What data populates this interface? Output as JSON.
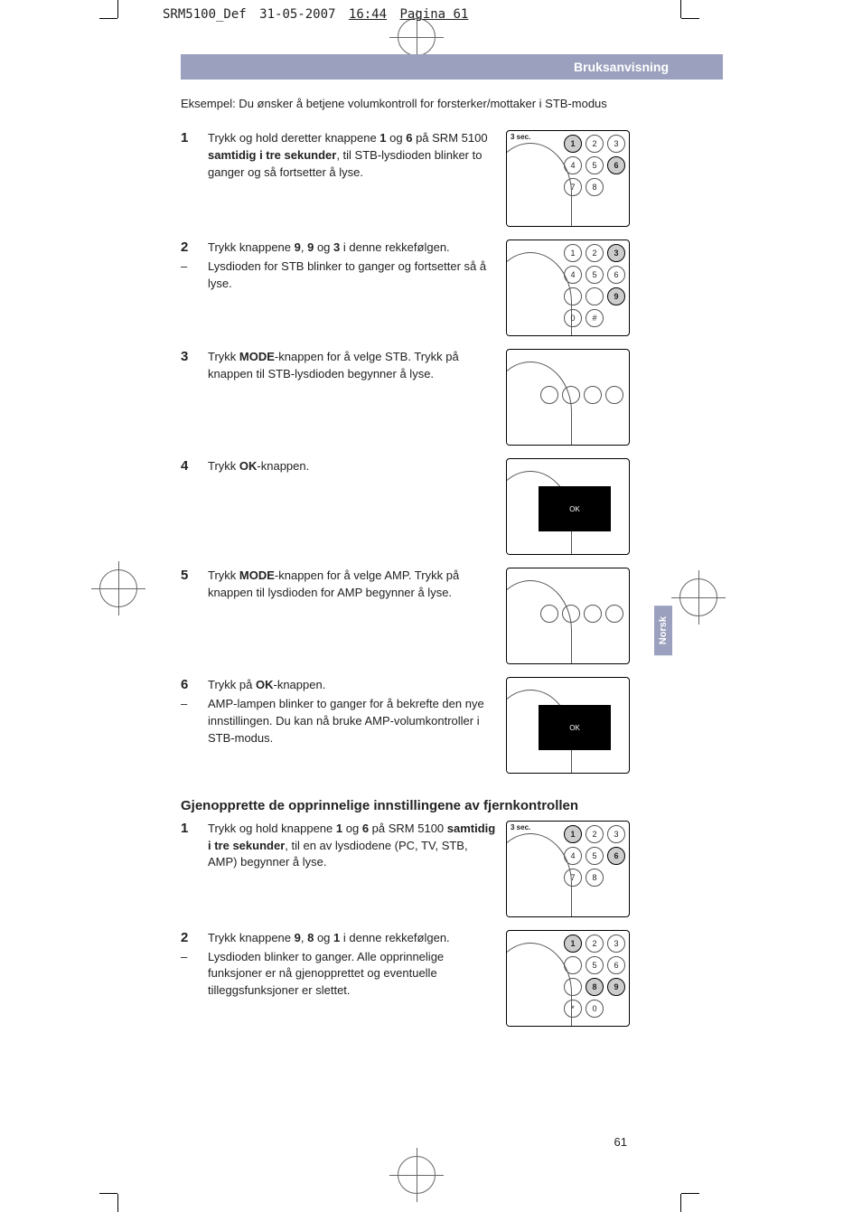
{
  "meta": {
    "filename": "SRM5100_Def",
    "date": "31-05-2007",
    "time": "16:44",
    "page_label": "Pagina 61"
  },
  "title_bar": "Bruksanvisning",
  "intro": "Eksempel: Du ønsker å betjene volumkontroll for forsterker/mottaker i STB-modus",
  "steps_a": [
    {
      "num": "1",
      "text_pre": "Trykk og hold deretter knappene ",
      "b1": "1",
      "mid1": " og ",
      "b2": "6",
      "mid2": " på SRM 5100 ",
      "b3": "samtidig i tre sekunder",
      "text_post": ", til STB-lysdioden blinker to ganger og så fortsetter å lyse.",
      "illus": {
        "timer": "3 sec.",
        "keys": [
          "1",
          "2",
          "3",
          "4",
          "5",
          "6",
          "7",
          "8"
        ],
        "hl": [
          "1",
          "6"
        ]
      }
    },
    {
      "num": "2",
      "text_pre": "Trykk knappene ",
      "b1": "9",
      "mid1": ", ",
      "b2": "9",
      "mid2": " og ",
      "b3": "3",
      "text_post": " i denne rekkefølgen.",
      "sub_dash": "–",
      "sub_text": "Lysdioden for STB blinker to ganger og fortsetter så å lyse.",
      "illus": {
        "keys": [
          "1",
          "2",
          "3",
          "4",
          "5",
          "6",
          "",
          "",
          "9",
          "0",
          "#"
        ],
        "hl": [
          "3",
          "9"
        ]
      }
    },
    {
      "num": "3",
      "text_pre": "Trykk ",
      "b1": "MODE",
      "text_post": "-knappen for å velge STB. Trykk på knappen til STB-lysdioden begynner å lyse.",
      "illus": {
        "mode": true
      }
    },
    {
      "num": "4",
      "text_pre": "Trykk ",
      "b1": "OK",
      "text_post": "-knappen.",
      "illus": {
        "ok": true
      }
    },
    {
      "num": "5",
      "text_pre": "Trykk ",
      "b1": "MODE",
      "text_post": "-knappen for å velge AMP. Trykk på knappen til lysdioden for AMP begynner å lyse.",
      "illus": {
        "mode": true
      }
    },
    {
      "num": "6",
      "text_pre": "Trykk på ",
      "b1": "OK",
      "text_post": "-knappen.",
      "sub_dash": "–",
      "sub_text": "AMP-lampen blinker to ganger for å bekrefte den nye innstillingen. Du kan nå bruke AMP-volumkontroller i STB-modus.",
      "illus": {
        "ok": true
      }
    }
  ],
  "heading_b": "Gjenopprette de opprinnelige innstillingene av fjernkontrollen",
  "steps_b": [
    {
      "num": "1",
      "text_pre": "Trykk og hold knappene ",
      "b1": "1",
      "mid1": " og ",
      "b2": "6",
      "mid2": " på SRM 5100 ",
      "b3": "samtidig i tre sekunder",
      "text_post": ", til en av lysdiodene (PC, TV, STB, AMP) begynner å lyse.",
      "illus": {
        "timer": "3 sec.",
        "keys": [
          "1",
          "2",
          "3",
          "4",
          "5",
          "6",
          "7",
          "8"
        ],
        "hl": [
          "1",
          "6"
        ]
      }
    },
    {
      "num": "2",
      "text_pre": "Trykk knappene ",
      "b1": "9",
      "mid1": ", ",
      "b2": "8",
      "mid2": " og ",
      "b3": "1",
      "text_post": " i denne rekkefølgen.",
      "sub_dash": "–",
      "sub_text": "Lysdioden blinker to ganger. Alle opprinnelige funksjoner er nå gjenopprettet og eventuelle tilleggsfunksjoner er slettet.",
      "illus": {
        "keys": [
          "1",
          "2",
          "3",
          "",
          "5",
          "6",
          "",
          "8",
          "9",
          "*",
          "0"
        ],
        "hl": [
          "1",
          "8",
          "9"
        ]
      }
    }
  ],
  "lang_tab": "Norsk",
  "page_number": "61",
  "colors": {
    "bar_bg": "#9aa0bd",
    "bar_text": "#ffffff",
    "text": "#222222"
  }
}
